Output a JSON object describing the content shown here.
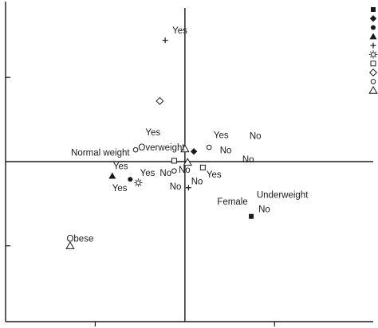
{
  "chart_data": {
    "type": "scatter",
    "title": "",
    "xlabel": "",
    "ylabel": "",
    "xlim": [
      -2.0,
      2.1
    ],
    "ylim": [
      -1.9,
      1.9
    ],
    "xticks": [
      -1,
      1
    ],
    "yticks": [
      -1,
      1
    ],
    "grid": false,
    "legend_position": "top-right",
    "legend_markers": [
      "filled-square",
      "filled-diamond",
      "filled-circle",
      "filled-triangle",
      "plus",
      "sun",
      "open-square",
      "open-diamond",
      "open-circle",
      "open-triangle"
    ],
    "points": [
      {
        "marker": "plus",
        "x": -0.22,
        "y": 1.44
      },
      {
        "marker": "open-diamond",
        "x": -0.28,
        "y": 0.72
      },
      {
        "marker": "open-triangle",
        "x": 0.0,
        "y": 0.15
      },
      {
        "marker": "filled-diamond",
        "x": 0.1,
        "y": 0.12
      },
      {
        "marker": "open-circle",
        "x": -0.55,
        "y": 0.14
      },
      {
        "marker": "open-circle",
        "x": 0.27,
        "y": 0.17
      },
      {
        "marker": "open-square",
        "x": -0.12,
        "y": 0.01
      },
      {
        "marker": "open-triangle",
        "x": 0.03,
        "y": -0.01
      },
      {
        "marker": "open-square",
        "x": 0.2,
        "y": -0.07
      },
      {
        "marker": "open-circle",
        "x": -0.12,
        "y": -0.11
      },
      {
        "marker": "filled-triangle",
        "x": -0.81,
        "y": -0.17
      },
      {
        "marker": "filled-circle",
        "x": -0.61,
        "y": -0.21
      },
      {
        "marker": "sun",
        "x": -0.52,
        "y": -0.25
      },
      {
        "marker": "plus",
        "x": 0.04,
        "y": -0.31
      },
      {
        "marker": "filled-square",
        "x": 0.74,
        "y": -0.65
      },
      {
        "marker": "open-triangle",
        "x": -1.28,
        "y": -1.0
      }
    ],
    "annotations": [
      {
        "text": "Yes",
        "x": -0.14,
        "y": 1.52
      },
      {
        "text": "Yes",
        "x": -0.44,
        "y": 0.31
      },
      {
        "text": "Normal weight",
        "x": -1.27,
        "y": 0.07
      },
      {
        "text": "Overweight",
        "x": -0.52,
        "y": 0.13
      },
      {
        "text": "Yes",
        "x": 0.32,
        "y": 0.28
      },
      {
        "text": "No",
        "x": 0.72,
        "y": 0.27
      },
      {
        "text": "No",
        "x": 0.39,
        "y": 0.1
      },
      {
        "text": "No",
        "x": 0.64,
        "y": -0.01
      },
      {
        "text": "Yes",
        "x": -0.8,
        "y": -0.09
      },
      {
        "text": "Yes",
        "x": -0.5,
        "y": -0.17
      },
      {
        "text": "No",
        "x": -0.28,
        "y": -0.17
      },
      {
        "text": "No",
        "x": -0.07,
        "y": -0.13
      },
      {
        "text": "No",
        "x": 0.07,
        "y": -0.27
      },
      {
        "text": "Yes",
        "x": 0.24,
        "y": -0.19
      },
      {
        "text": "No",
        "x": -0.17,
        "y": -0.33
      },
      {
        "text": "Yes",
        "x": -0.81,
        "y": -0.35
      },
      {
        "text": "Underweight",
        "x": 0.8,
        "y": -0.43
      },
      {
        "text": "Female",
        "x": 0.36,
        "y": -0.51
      },
      {
        "text": "No",
        "x": 0.82,
        "y": -0.6
      },
      {
        "text": "Obese",
        "x": -1.32,
        "y": -0.95
      }
    ]
  }
}
